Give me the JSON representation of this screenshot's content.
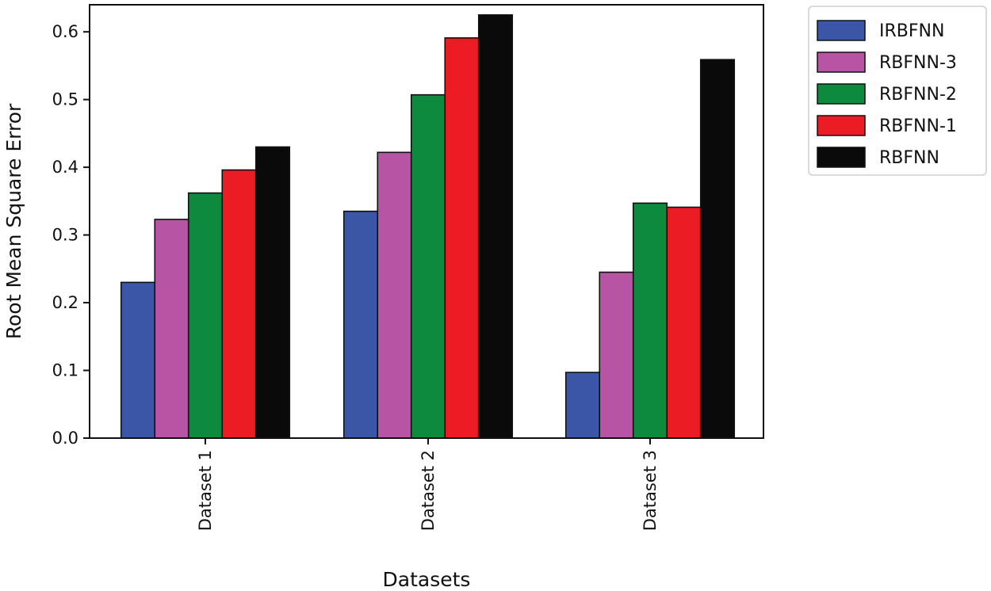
{
  "chart_data": {
    "type": "bar",
    "xlabel": "Datasets",
    "ylabel": "Root Mean Square Error",
    "categories": [
      "Dataset 1",
      "Dataset 2",
      "Dataset 3"
    ],
    "ylim": [
      0,
      0.64
    ],
    "yticks": [
      "0.0",
      "0.1",
      "0.2",
      "0.3",
      "0.4",
      "0.5",
      "0.6"
    ],
    "grid": false,
    "legend_position": "outside-top-right",
    "series": [
      {
        "name": "IRBFNN",
        "color": "#3b56a6",
        "values": [
          0.23,
          0.335,
          0.097
        ]
      },
      {
        "name": "RBFNN-3",
        "color": "#b854a4",
        "values": [
          0.323,
          0.422,
          0.245
        ]
      },
      {
        "name": "RBFNN-2",
        "color": "#0e8a3e",
        "values": [
          0.362,
          0.507,
          0.347
        ]
      },
      {
        "name": "RBFNN-1",
        "color": "#ec1c24",
        "values": [
          0.396,
          0.591,
          0.341
        ]
      },
      {
        "name": "RBFNN",
        "color": "#0a0a0a",
        "values": [
          0.43,
          0.625,
          0.559
        ]
      }
    ]
  }
}
